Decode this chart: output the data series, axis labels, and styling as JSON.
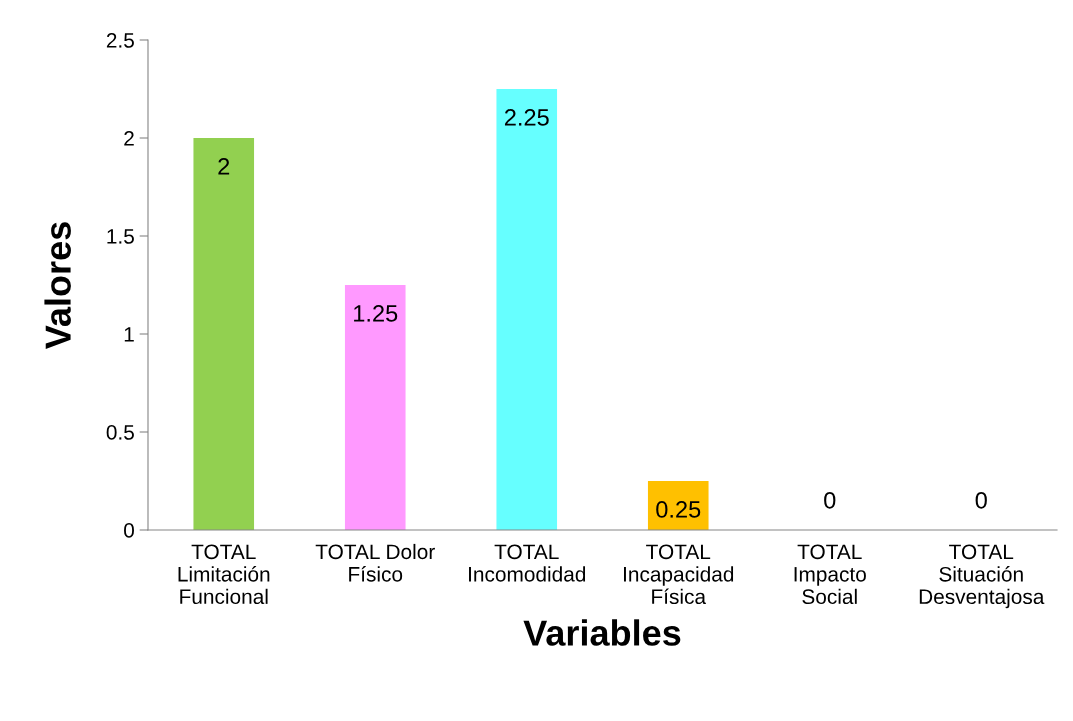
{
  "chart_data": {
    "type": "bar",
    "xlabel": "Variables",
    "ylabel": "Valores",
    "categories": [
      "TOTAL\nLimitación\nFuncional",
      "TOTAL Dolor\nFísico",
      "TOTAL\nIncomodidad",
      "TOTAL\nIncapacidad\nFísica",
      "TOTAL\nImpacto\nSocial",
      "TOTAL\nSituación\nDesventajosa"
    ],
    "values": [
      2,
      1.25,
      2.25,
      0.25,
      0,
      0
    ],
    "colors": [
      "#92d050",
      "#ff99ff",
      "#66ffff",
      "#ffc000",
      "#4f81bd",
      "#4f81bd"
    ],
    "ylim": [
      0,
      2.5
    ],
    "yticks": [
      0,
      0.5,
      1,
      1.5,
      2,
      2.5
    ],
    "grid": false,
    "legend": false,
    "data_labels": true
  }
}
